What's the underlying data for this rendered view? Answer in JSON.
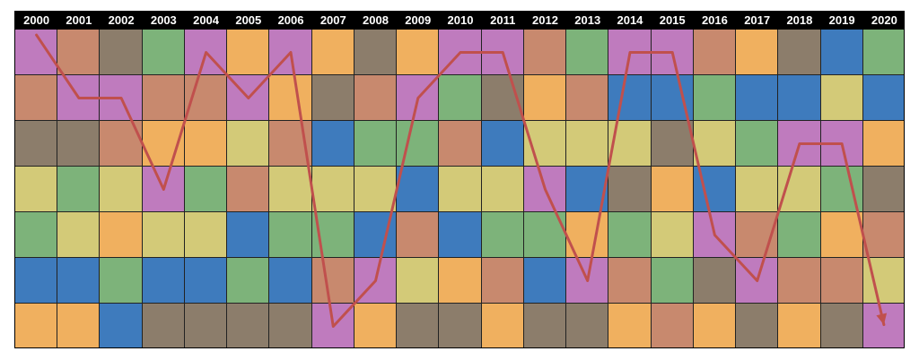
{
  "chart_data": {
    "type": "heatmap",
    "title": "",
    "years": [
      "2000",
      "2001",
      "2002",
      "2003",
      "2004",
      "2005",
      "2006",
      "2007",
      "2008",
      "2009",
      "2010",
      "2011",
      "2012",
      "2013",
      "2014",
      "2015",
      "2016",
      "2017",
      "2018",
      "2019",
      "2020"
    ],
    "row_count": 7,
    "colors": {
      "P": "#bf7bbe",
      "S": "#c8896e",
      "T": "#8c7d6b",
      "G": "#7db37a",
      "O": "#f0b05f",
      "B": "#3e7bbd",
      "Y": "#d3ca78"
    },
    "grid": [
      [
        "P",
        "S",
        "T",
        "G",
        "P",
        "O",
        "P",
        "O",
        "T",
        "O",
        "P",
        "P",
        "S",
        "G",
        "P",
        "P",
        "S",
        "O",
        "T",
        "B",
        "G"
      ],
      [
        "S",
        "P",
        "P",
        "S",
        "S",
        "P",
        "O",
        "T",
        "S",
        "P",
        "G",
        "T",
        "O",
        "S",
        "B",
        "B",
        "G",
        "B",
        "B",
        "Y",
        "B"
      ],
      [
        "T",
        "T",
        "S",
        "O",
        "O",
        "Y",
        "S",
        "B",
        "G",
        "G",
        "S",
        "B",
        "Y",
        "Y",
        "Y",
        "T",
        "Y",
        "G",
        "P",
        "P",
        "O"
      ],
      [
        "Y",
        "G",
        "Y",
        "P",
        "G",
        "S",
        "Y",
        "Y",
        "Y",
        "B",
        "Y",
        "Y",
        "P",
        "B",
        "T",
        "O",
        "B",
        "Y",
        "Y",
        "G",
        "T"
      ],
      [
        "G",
        "Y",
        "O",
        "Y",
        "Y",
        "B",
        "G",
        "G",
        "B",
        "S",
        "B",
        "G",
        "G",
        "O",
        "G",
        "Y",
        "P",
        "S",
        "G",
        "O",
        "S"
      ],
      [
        "B",
        "B",
        "G",
        "B",
        "B",
        "G",
        "B",
        "S",
        "P",
        "Y",
        "O",
        "S",
        "B",
        "P",
        "S",
        "G",
        "T",
        "P",
        "S",
        "S",
        "Y"
      ],
      [
        "O",
        "O",
        "B",
        "T",
        "T",
        "T",
        "T",
        "P",
        "O",
        "T",
        "T",
        "O",
        "T",
        "T",
        "O",
        "S",
        "O",
        "T",
        "O",
        "T",
        "P"
      ]
    ],
    "highlight_color_key": "P",
    "line_color": "#c0504d"
  }
}
